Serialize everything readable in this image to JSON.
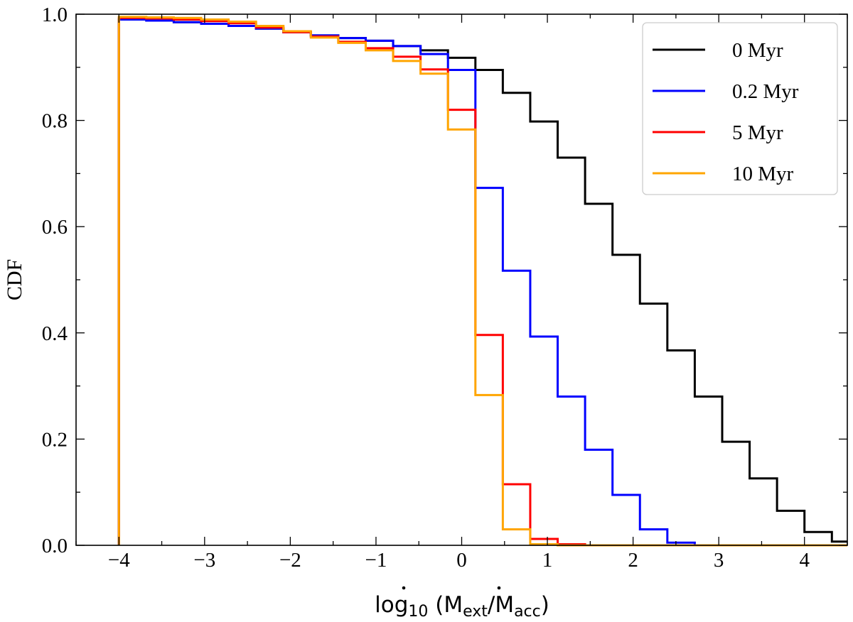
{
  "chart_data": {
    "type": "line",
    "step": true,
    "title": "",
    "xlabel": "log10 (Ṁext/Ṁacc)",
    "xlabel_parts": {
      "prefix": "log",
      "sub1": "10",
      "open": " (",
      "m1": "M",
      "sub2": "ext",
      "slash": "/",
      "m2": "M",
      "sub3": "acc",
      "close": ")"
    },
    "ylabel": "CDF",
    "xlim": [
      -4.5,
      4.5
    ],
    "ylim": [
      0.0,
      1.0
    ],
    "xticks": [
      -4,
      -3,
      -2,
      -1,
      0,
      1,
      2,
      3,
      4
    ],
    "xtick_labels": [
      "−4",
      "−3",
      "−2",
      "−1",
      "0",
      "1",
      "2",
      "3",
      "4"
    ],
    "yticks": [
      0.0,
      0.2,
      0.4,
      0.6,
      0.8,
      1.0
    ],
    "ytick_labels": [
      "0.0",
      "0.2",
      "0.4",
      "0.6",
      "0.8",
      "1.0"
    ],
    "bin_edges": [
      -4.0,
      -3.68,
      -3.36,
      -3.04,
      -2.72,
      -2.4,
      -2.08,
      -1.76,
      -1.44,
      -1.12,
      -0.8,
      -0.48,
      -0.16,
      0.16,
      0.48,
      0.8,
      1.12,
      1.44,
      1.76,
      2.08,
      2.4,
      2.72,
      3.04,
      3.36,
      3.68,
      4.0,
      4.32,
      4.5
    ],
    "legend_position": "top-right",
    "series": [
      {
        "name": "0 Myr",
        "color": "#000000",
        "values": [
          0.99,
          0.988,
          0.985,
          0.982,
          0.978,
          0.973,
          0.966,
          0.96,
          0.955,
          0.95,
          0.94,
          0.932,
          0.918,
          0.895,
          0.852,
          0.798,
          0.73,
          0.643,
          0.547,
          0.455,
          0.367,
          0.28,
          0.195,
          0.126,
          0.065,
          0.025,
          0.007
        ]
      },
      {
        "name": "0.2 Myr",
        "color": "#0000ff",
        "values": [
          0.99,
          0.988,
          0.985,
          0.982,
          0.978,
          0.973,
          0.966,
          0.96,
          0.955,
          0.95,
          0.94,
          0.925,
          0.895,
          0.673,
          0.517,
          0.393,
          0.28,
          0.18,
          0.095,
          0.03,
          0.005,
          0.0,
          0.0,
          0.0,
          0.0,
          0.0,
          0.0
        ]
      },
      {
        "name": "5 Myr",
        "color": "#ff0000",
        "values": [
          0.993,
          0.992,
          0.99,
          0.987,
          0.983,
          0.975,
          0.966,
          0.958,
          0.948,
          0.936,
          0.92,
          0.896,
          0.82,
          0.396,
          0.115,
          0.012,
          0.002,
          0.0,
          0.0,
          0.0,
          0.0,
          0.0,
          0.0,
          0.0,
          0.0,
          0.0,
          0.0
        ]
      },
      {
        "name": "10 Myr",
        "color": "#ffa500",
        "values": [
          0.995,
          0.994,
          0.993,
          0.99,
          0.986,
          0.978,
          0.968,
          0.956,
          0.946,
          0.932,
          0.912,
          0.888,
          0.783,
          0.283,
          0.03,
          0.002,
          0.0,
          0.0,
          0.0,
          0.0,
          0.0,
          0.0,
          0.0,
          0.0,
          0.0,
          0.0,
          0.0
        ]
      }
    ]
  }
}
